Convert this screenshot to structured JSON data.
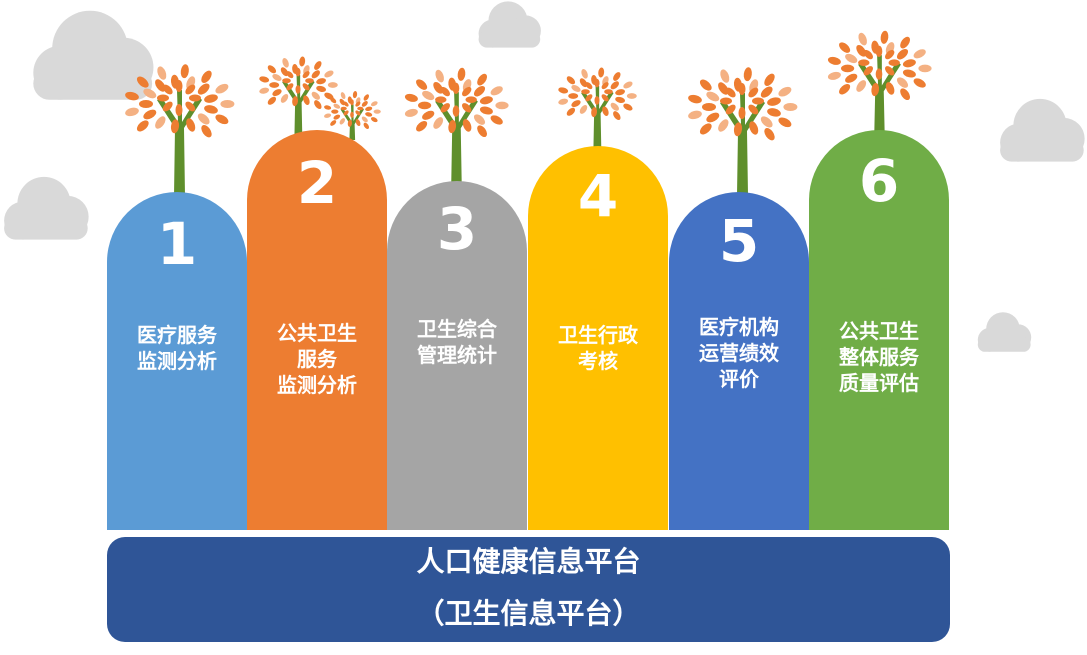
{
  "pillars": [
    {
      "number": "1",
      "lines": [
        "医疗服务",
        "监测分析"
      ],
      "color": "#5b9bd5"
    },
    {
      "number": "2",
      "lines": [
        "公共卫生",
        "服务",
        "监测分析"
      ],
      "color": "#ed7d31"
    },
    {
      "number": "3",
      "lines": [
        "卫生综合",
        "管理统计"
      ],
      "color": "#a5a5a5"
    },
    {
      "number": "4",
      "lines": [
        "卫生行政",
        "考核"
      ],
      "color": "#ffc000"
    },
    {
      "number": "5",
      "lines": [
        "医疗机构",
        "运营绩效",
        "评价"
      ],
      "color": "#4472c4"
    },
    {
      "number": "6",
      "lines": [
        "公共卫生",
        "整体服务",
        "质量评估"
      ],
      "color": "#70ad47"
    }
  ],
  "platform": {
    "title": "人口健康信息平台",
    "subtitle": "（卫生信息平台）",
    "color": "#2f5597"
  },
  "decor": {
    "cloud_color": "#d9d9d9",
    "trunk_color": "#5f8f2c",
    "leaf_color": "#ed7d31",
    "leaf_light_color": "#f4b183",
    "icons": [
      "cloud-icon",
      "tree-icon"
    ]
  }
}
